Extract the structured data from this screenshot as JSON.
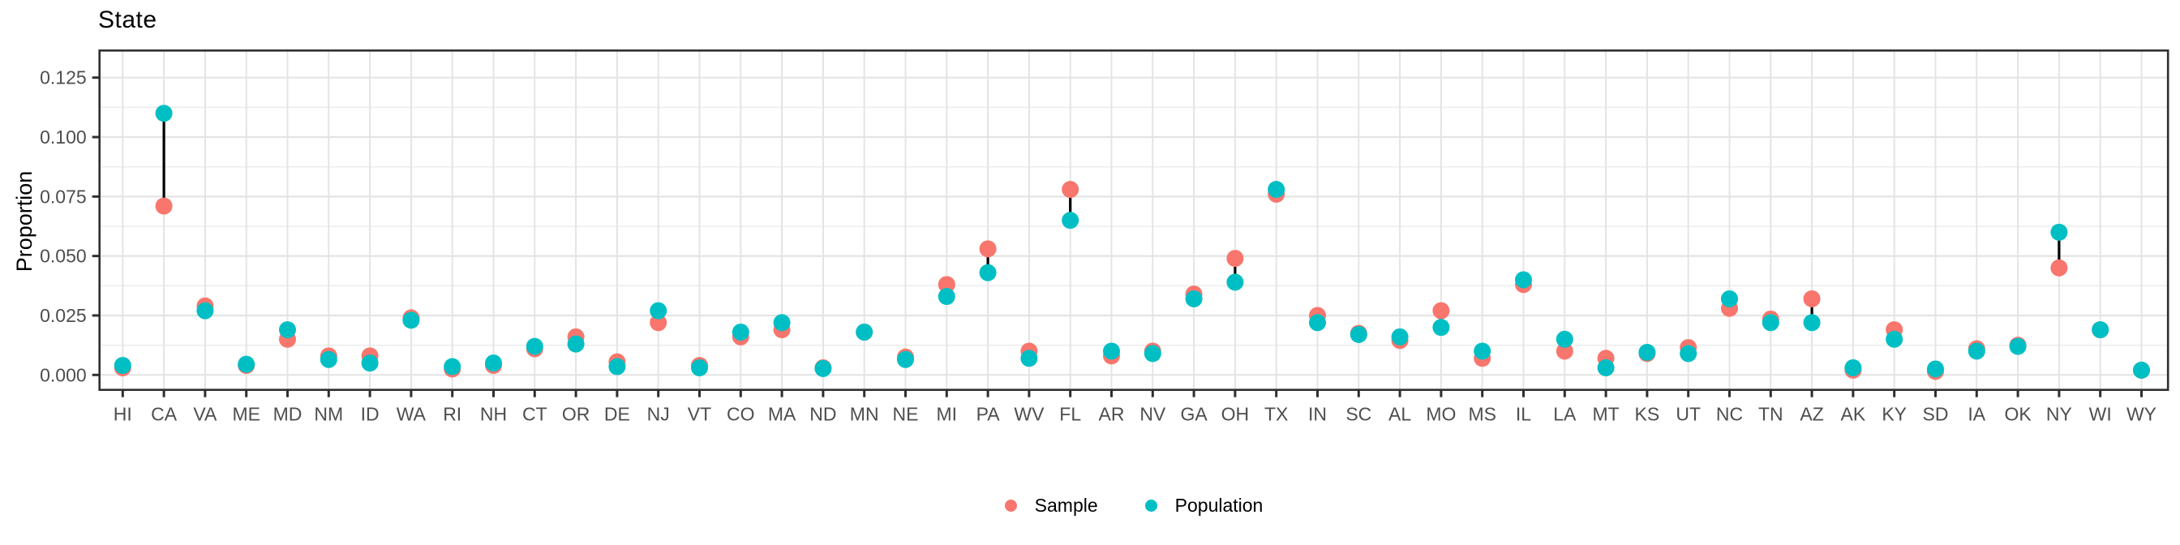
{
  "chart_data": {
    "type": "scatter",
    "variant": "dumbbell-dot-plot",
    "title": "State",
    "xlabel": "",
    "ylabel": "Proportion",
    "categories": [
      "HI",
      "CA",
      "VA",
      "ME",
      "MD",
      "NM",
      "ID",
      "WA",
      "RI",
      "NH",
      "CT",
      "OR",
      "DE",
      "NJ",
      "VT",
      "CO",
      "MA",
      "ND",
      "MN",
      "NE",
      "MI",
      "PA",
      "WV",
      "FL",
      "AR",
      "NV",
      "GA",
      "OH",
      "TX",
      "IN",
      "SC",
      "AL",
      "MO",
      "MS",
      "IL",
      "LA",
      "MT",
      "KS",
      "UT",
      "NC",
      "TN",
      "AZ",
      "AK",
      "KY",
      "SD",
      "IA",
      "OK",
      "NY",
      "WI",
      "WY"
    ],
    "series": [
      {
        "name": "Sample",
        "color": "#F8766D",
        "values": [
          0.003,
          0.071,
          0.029,
          0.004,
          0.015,
          0.008,
          0.008,
          0.024,
          0.0025,
          0.004,
          0.011,
          0.016,
          0.0055,
          0.022,
          0.004,
          0.016,
          0.019,
          0.003,
          0.018,
          0.0075,
          0.038,
          0.053,
          0.01,
          0.078,
          0.008,
          0.01,
          0.034,
          0.049,
          0.076,
          0.025,
          0.0175,
          0.0145,
          0.027,
          0.007,
          0.038,
          0.01,
          0.007,
          0.009,
          0.0115,
          0.028,
          0.0235,
          0.032,
          0.002,
          0.019,
          0.0015,
          0.011,
          0.0125,
          0.045,
          0.019,
          0.002
        ]
      },
      {
        "name": "Population",
        "color": "#00BFC4",
        "values": [
          0.004,
          0.11,
          0.027,
          0.0045,
          0.019,
          0.0065,
          0.005,
          0.023,
          0.0035,
          0.005,
          0.012,
          0.013,
          0.0035,
          0.027,
          0.003,
          0.018,
          0.022,
          0.0027,
          0.018,
          0.0065,
          0.033,
          0.043,
          0.007,
          0.065,
          0.01,
          0.009,
          0.032,
          0.039,
          0.078,
          0.022,
          0.017,
          0.016,
          0.02,
          0.01,
          0.04,
          0.015,
          0.003,
          0.0095,
          0.009,
          0.032,
          0.022,
          0.022,
          0.003,
          0.015,
          0.0025,
          0.01,
          0.012,
          0.06,
          0.019,
          0.002
        ]
      }
    ],
    "connector_color": "#000000",
    "ylim": [
      -0.006,
      0.1365
    ],
    "yticks": [
      0,
      0.025,
      0.05,
      0.075,
      0.1,
      0.125
    ],
    "ytick_labels": [
      "0.000",
      "0.025",
      "0.050",
      "0.075",
      "0.100",
      "0.125"
    ],
    "minor_grid_step": 0.0125,
    "grid": true,
    "legend_position": "bottom"
  },
  "style": {
    "background": "#FFFFFF",
    "panel_border_color": "#2F2F2F",
    "grid_major_color": "#E4E4E4",
    "grid_minor_color": "#EDEDED",
    "tick_color": "#2F2F2F",
    "tick_label_color": "#4D4D4D"
  },
  "legend": {
    "items": [
      {
        "label": "Sample",
        "color": "#F8766D"
      },
      {
        "label": "Population",
        "color": "#00BFC4"
      }
    ]
  }
}
